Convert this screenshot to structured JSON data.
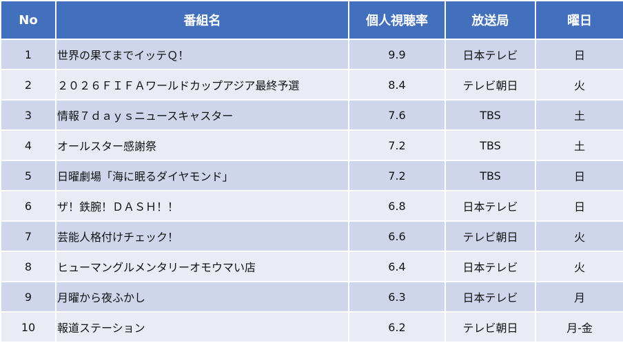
{
  "headers": [
    "No",
    "番組名",
    "個人視聴率",
    "放送局",
    "曜日"
  ],
  "colors": {
    "header": "#4270BC",
    "row_odd": "#CFD5EA",
    "row_even": "#E9EBF5"
  },
  "rows": [
    {
      "no": "1",
      "title": "世界の果てまでイッテＱ！",
      "rating": "9.9",
      "station": "日本テレビ",
      "day": "日"
    },
    {
      "no": "2",
      "title": "２０２６ＦＩＦＡワールドカップアジア最終予選",
      "rating": "8.4",
      "station": "テレビ朝日",
      "day": "火"
    },
    {
      "no": "3",
      "title": "情報７ｄａｙｓニュースキャスター",
      "rating": "7.6",
      "station": "TBS",
      "day": "土"
    },
    {
      "no": "4",
      "title": "オールスター感謝祭",
      "rating": "7.2",
      "station": "TBS",
      "day": "土"
    },
    {
      "no": "5",
      "title": "日曜劇場「海に眠るダイヤモンド」",
      "rating": "7.2",
      "station": "TBS",
      "day": "日"
    },
    {
      "no": "6",
      "title": "ザ！鉄腕！ＤＡＳＨ！！",
      "rating": "6.8",
      "station": "日本テレビ",
      "day": "日"
    },
    {
      "no": "7",
      "title": "芸能人格付けチェック！",
      "rating": "6.6",
      "station": "テレビ朝日",
      "day": "火"
    },
    {
      "no": "8",
      "title": "ヒューマングルメンタリーオモウマい店",
      "rating": "6.4",
      "station": "日本テレビ",
      "day": "火"
    },
    {
      "no": "9",
      "title": "月曜から夜ふかし",
      "rating": "6.3",
      "station": "日本テレビ",
      "day": "月"
    },
    {
      "no": "10",
      "title": "報道ステーション",
      "rating": "6.2",
      "station": "テレビ朝日",
      "day": "月-金"
    }
  ]
}
